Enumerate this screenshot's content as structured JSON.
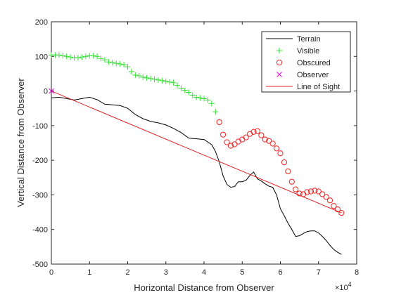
{
  "chart_data": {
    "type": "line",
    "xlabel": "Horizontal Distance from Observer",
    "ylabel": "Vertical Distance from Observer",
    "x_exponent_label": "×10",
    "x_exponent_power": "4",
    "xlim": [
      0,
      80000
    ],
    "ylim": [
      -500,
      200
    ],
    "xticks": [
      0,
      10000,
      20000,
      30000,
      40000,
      50000,
      60000,
      70000,
      80000
    ],
    "xtick_labels": [
      "0",
      "1",
      "2",
      "3",
      "4",
      "5",
      "6",
      "7",
      "8"
    ],
    "yticks": [
      -500,
      -400,
      -300,
      -200,
      -100,
      0,
      100,
      200
    ],
    "ytick_labels": [
      "-500",
      "-400",
      "-300",
      "-200",
      "-100",
      "0",
      "100",
      "200"
    ],
    "legend_position": "top-right",
    "colors": {
      "terrain": "#000000",
      "visible": "#33dd33",
      "obscured": "#ee2222",
      "observer": "#ee00ee",
      "line_of_sight": "#dd2222"
    },
    "series": [
      {
        "name": "Terrain",
        "style": "line",
        "x": [
          0,
          2000,
          4000,
          6000,
          8000,
          10000,
          12000,
          14000,
          16000,
          18000,
          20000,
          22000,
          24000,
          26000,
          28000,
          30000,
          32000,
          34000,
          36000,
          38000,
          40000,
          42000,
          43000,
          44000,
          45000,
          46000,
          47000,
          48000,
          49000,
          50000,
          51000,
          52000,
          53000,
          54000,
          55000,
          56000,
          57000,
          58000,
          59000,
          60000,
          61000,
          62000,
          63000,
          64000,
          65000,
          66000,
          67000,
          68000,
          69000,
          70000,
          71000,
          72000,
          73000,
          74000,
          75000,
          76000
        ],
        "y": [
          -20,
          -18,
          -22,
          -26,
          -22,
          -18,
          -25,
          -38,
          -40,
          -42,
          -50,
          -68,
          -80,
          -88,
          -92,
          -98,
          -108,
          -120,
          -136,
          -138,
          -140,
          -155,
          -175,
          -205,
          -245,
          -270,
          -278,
          -276,
          -262,
          -262,
          -258,
          -244,
          -234,
          -254,
          -260,
          -268,
          -275,
          -278,
          -300,
          -340,
          -360,
          -382,
          -400,
          -420,
          -418,
          -412,
          -406,
          -404,
          -404,
          -410,
          -420,
          -432,
          -446,
          -458,
          -466,
          -472
        ]
      },
      {
        "name": "Visible",
        "style": "plus",
        "x": [
          0,
          1000,
          2000,
          3000,
          4000,
          5000,
          6000,
          7000,
          8000,
          9000,
          10000,
          11000,
          12000,
          13000,
          14000,
          15000,
          16000,
          17000,
          18000,
          19000,
          20000,
          21000,
          22000,
          23000,
          24000,
          25000,
          26000,
          27000,
          28000,
          29000,
          30000,
          31000,
          32000,
          33000,
          34000,
          35000,
          36000,
          37000,
          38000,
          39000,
          40000,
          41000,
          42000,
          43000
        ],
        "y": [
          104,
          104,
          104,
          102,
          100,
          98,
          96,
          96,
          98,
          100,
          102,
          102,
          100,
          94,
          90,
          84,
          82,
          80,
          78,
          76,
          70,
          56,
          46,
          44,
          40,
          38,
          36,
          34,
          32,
          30,
          28,
          26,
          24,
          16,
          8,
          2,
          -4,
          -12,
          -18,
          -20,
          -22,
          -26,
          -36,
          -60
        ]
      },
      {
        "name": "Obscured",
        "style": "circle",
        "x": [
          44000,
          45000,
          46000,
          47000,
          48000,
          49000,
          50000,
          51000,
          52000,
          53000,
          54000,
          55000,
          56000,
          57000,
          58000,
          59000,
          60000,
          61000,
          62000,
          63000,
          64000,
          65000,
          66000,
          67000,
          68000,
          69000,
          70000,
          71000,
          72000,
          73000,
          74000,
          75000,
          76000
        ],
        "y": [
          -90,
          -126,
          -148,
          -158,
          -154,
          -146,
          -140,
          -134,
          -124,
          -118,
          -116,
          -128,
          -140,
          -144,
          -152,
          -166,
          -180,
          -206,
          -232,
          -262,
          -284,
          -296,
          -298,
          -292,
          -290,
          -288,
          -290,
          -298,
          -306,
          -316,
          -332,
          -342,
          -352
        ]
      },
      {
        "name": "Observer",
        "style": "x",
        "x": [
          0
        ],
        "y": [
          0
        ]
      },
      {
        "name": "Line of Sight",
        "style": "line",
        "x": [
          0,
          76000
        ],
        "y": [
          0,
          -352
        ]
      }
    ]
  }
}
